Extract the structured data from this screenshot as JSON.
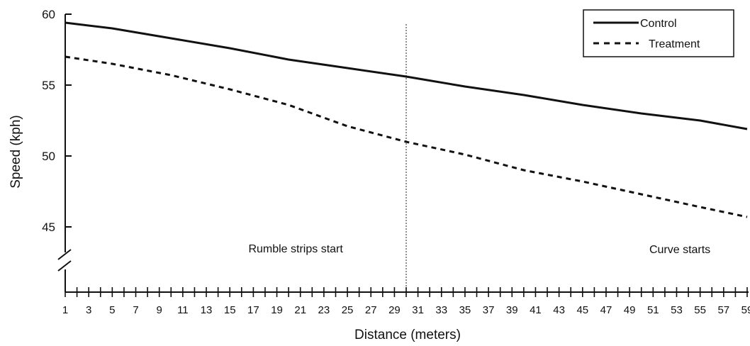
{
  "chart_data": {
    "type": "line",
    "title": "",
    "xlabel": "Distance (meters)",
    "ylabel": "Speed (kph)",
    "xlim": [
      1,
      59
    ],
    "ylim": [
      45,
      60
    ],
    "y_axis_break": true,
    "x_ticks": [
      1,
      3,
      5,
      7,
      9,
      11,
      13,
      15,
      17,
      19,
      21,
      23,
      25,
      27,
      29,
      31,
      33,
      35,
      37,
      39,
      41,
      43,
      45,
      47,
      49,
      51,
      53,
      55,
      57,
      59
    ],
    "x_tick_labels": [
      "1",
      "3",
      "5",
      "7",
      "9",
      "11",
      "13",
      "15",
      "17",
      "19",
      "21",
      "23",
      "25",
      "27",
      "29",
      "31",
      "33",
      "35",
      "37",
      "39",
      "41",
      "43",
      "45",
      "47",
      "49",
      "51",
      "53",
      "55",
      "57",
      "59"
    ],
    "y_ticks": [
      45,
      50,
      55,
      60
    ],
    "y_tick_labels": [
      "45",
      "50",
      "55",
      "60"
    ],
    "grid": false,
    "legend_position": "top-right",
    "series": [
      {
        "name": "Control",
        "style": "solid",
        "color": "#111111",
        "x": [
          1,
          5,
          10,
          15,
          20,
          25,
          30,
          35,
          40,
          45,
          50,
          55,
          59
        ],
        "values": [
          59.4,
          59.0,
          58.3,
          57.6,
          56.8,
          56.2,
          55.6,
          54.9,
          54.3,
          53.6,
          53.0,
          52.5,
          51.9
        ]
      },
      {
        "name": "Treatment",
        "style": "dashed",
        "color": "#111111",
        "x": [
          1,
          5,
          10,
          15,
          20,
          25,
          30,
          35,
          40,
          45,
          50,
          55,
          59
        ],
        "values": [
          57.0,
          56.5,
          55.7,
          54.7,
          53.6,
          52.1,
          51.0,
          50.1,
          49.0,
          48.2,
          47.3,
          46.4,
          45.7
        ]
      }
    ],
    "reference_lines": [
      {
        "axis": "x",
        "value": 30,
        "style": "dotted"
      }
    ],
    "annotations": [
      {
        "text": "Rumble strips start",
        "x": 20
      },
      {
        "text": "Curve starts",
        "x": 54
      }
    ]
  }
}
